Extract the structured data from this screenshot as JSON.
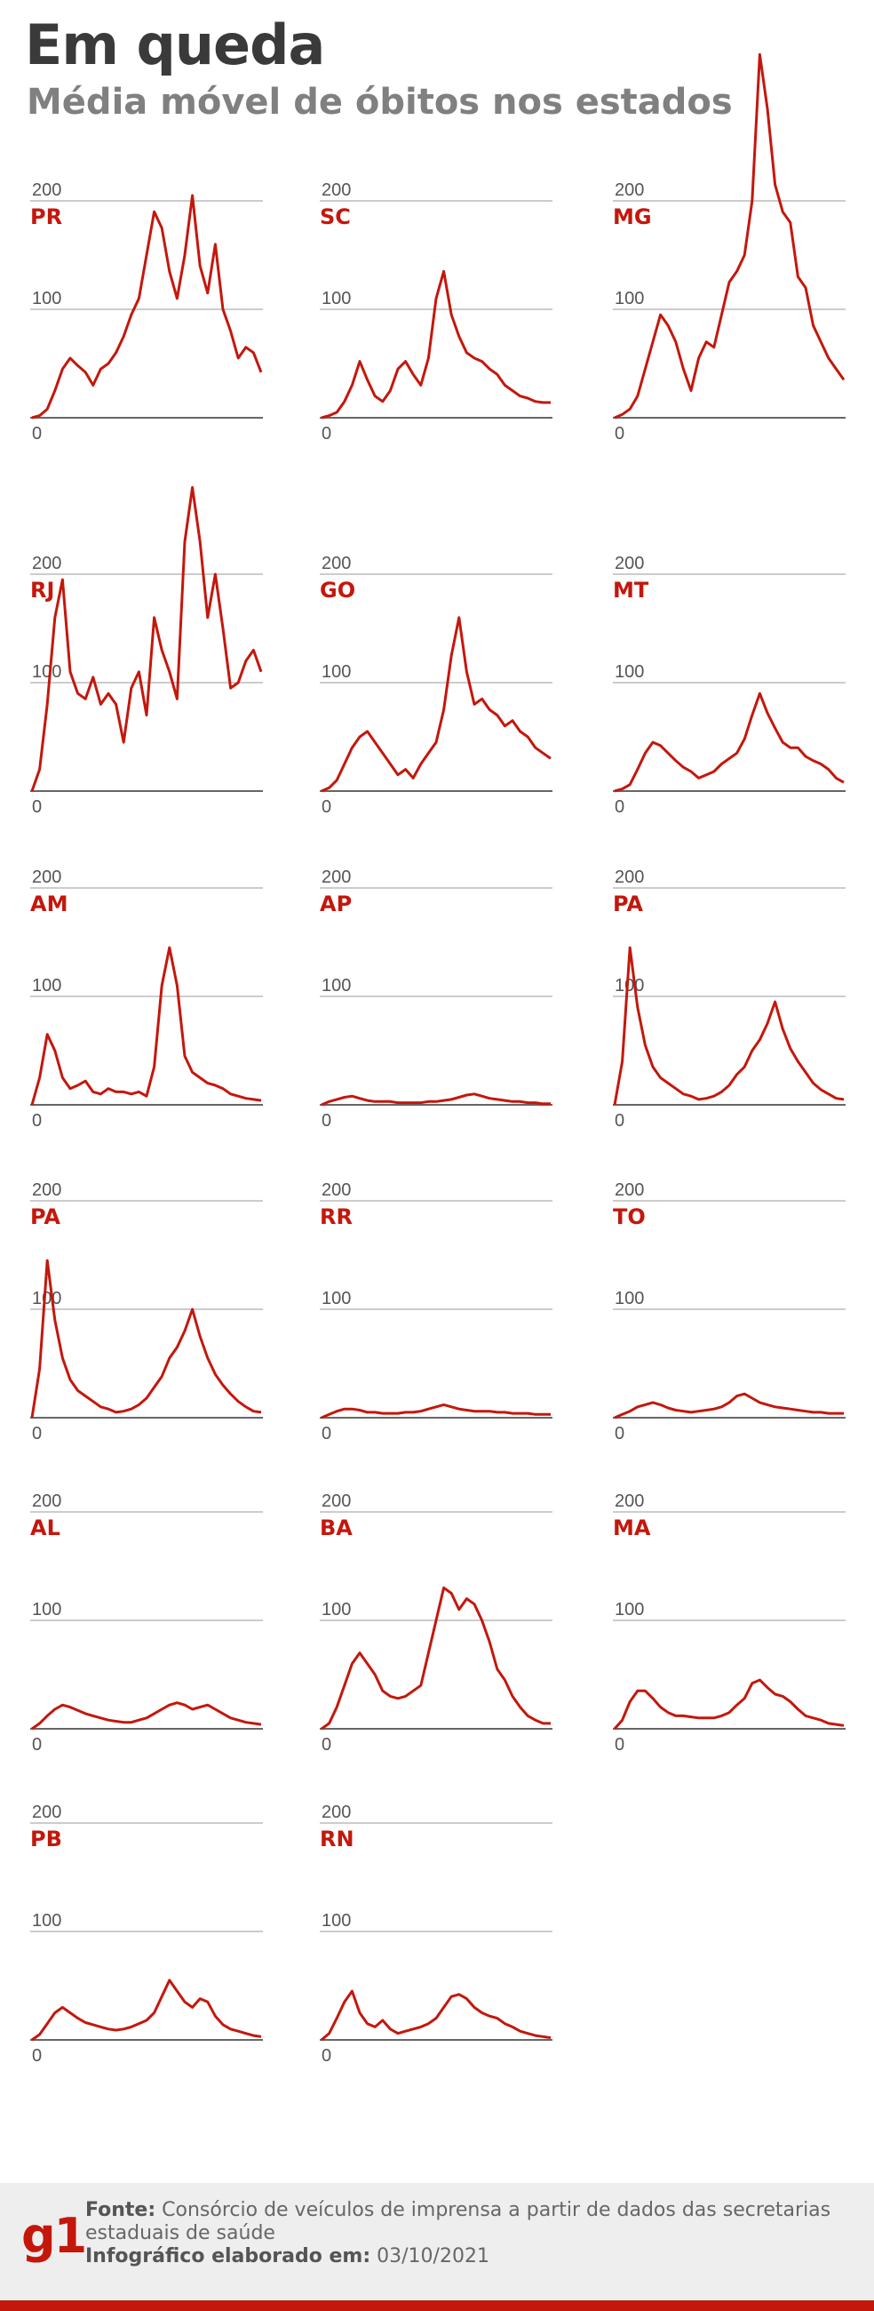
{
  "header": {
    "title": "Em queda",
    "subtitle": "Média móvel de óbitos nos estados"
  },
  "colors": {
    "line": "#c4170c",
    "state_label": "#c4170c",
    "grid": "#bbbbbb",
    "baseline": "#666666",
    "tick": "#555555"
  },
  "chart_data": [
    {
      "type": "line",
      "title": "PR",
      "ylim": [
        0,
        200
      ],
      "yticks": [
        "200",
        "100",
        "0"
      ],
      "x": [
        0,
        10,
        20,
        30,
        40,
        50,
        60,
        70,
        80,
        90,
        100,
        110,
        120,
        130,
        140,
        150,
        160,
        170,
        180,
        190,
        200,
        210,
        220,
        230,
        240,
        250,
        260,
        270,
        280,
        290,
        300
      ],
      "values": [
        0,
        2,
        8,
        25,
        45,
        55,
        48,
        42,
        30,
        45,
        50,
        60,
        75,
        95,
        110,
        150,
        190,
        175,
        135,
        110,
        150,
        205,
        140,
        115,
        160,
        100,
        80,
        55,
        65,
        60,
        42
      ]
    },
    {
      "type": "line",
      "title": "SC",
      "ylim": [
        0,
        200
      ],
      "yticks": [
        "200",
        "100",
        "0"
      ],
      "x": [
        0,
        10,
        20,
        30,
        40,
        50,
        60,
        70,
        80,
        90,
        100,
        110,
        120,
        130,
        140,
        150,
        160,
        170,
        180,
        190,
        200,
        210,
        220,
        230,
        240,
        250,
        260,
        270,
        280,
        290,
        300
      ],
      "values": [
        0,
        2,
        5,
        15,
        30,
        52,
        35,
        20,
        15,
        25,
        45,
        52,
        40,
        30,
        55,
        110,
        135,
        95,
        75,
        60,
        55,
        52,
        45,
        40,
        30,
        25,
        20,
        18,
        15,
        14,
        14
      ]
    },
    {
      "type": "line",
      "title": "MG",
      "ylim": [
        0,
        200
      ],
      "yticks": [
        "200",
        "100",
        "0"
      ],
      "x": [
        0,
        10,
        20,
        30,
        40,
        50,
        60,
        70,
        80,
        90,
        100,
        110,
        120,
        130,
        140,
        150,
        160,
        170,
        180,
        190,
        200,
        210,
        220,
        230,
        240,
        250,
        260,
        270,
        280,
        290,
        300
      ],
      "values": [
        0,
        3,
        8,
        20,
        45,
        70,
        95,
        85,
        70,
        45,
        25,
        55,
        70,
        65,
        95,
        125,
        135,
        150,
        200,
        335,
        285,
        215,
        190,
        180,
        130,
        120,
        85,
        70,
        55,
        45,
        35
      ]
    },
    {
      "type": "line",
      "title": "RJ",
      "ylim": [
        0,
        200
      ],
      "yticks": [
        "200",
        "100",
        "0"
      ],
      "x": [
        0,
        10,
        20,
        30,
        40,
        50,
        60,
        70,
        80,
        90,
        100,
        110,
        120,
        130,
        140,
        150,
        160,
        170,
        180,
        190,
        200,
        210,
        220,
        230,
        240,
        250,
        260,
        270,
        280,
        290,
        300
      ],
      "values": [
        0,
        20,
        80,
        160,
        195,
        110,
        90,
        85,
        105,
        80,
        90,
        80,
        45,
        95,
        110,
        70,
        160,
        130,
        110,
        85,
        230,
        280,
        230,
        160,
        200,
        150,
        95,
        100,
        120,
        130,
        110
      ]
    },
    {
      "type": "line",
      "title": "GO",
      "ylim": [
        0,
        200
      ],
      "yticks": [
        "200",
        "100",
        "0"
      ],
      "x": [
        0,
        10,
        20,
        30,
        40,
        50,
        60,
        70,
        80,
        90,
        100,
        110,
        120,
        130,
        140,
        150,
        160,
        170,
        180,
        190,
        200,
        210,
        220,
        230,
        240,
        250,
        260,
        270,
        280,
        290,
        300
      ],
      "values": [
        0,
        3,
        10,
        25,
        40,
        50,
        55,
        45,
        35,
        25,
        15,
        20,
        12,
        25,
        35,
        45,
        75,
        125,
        160,
        110,
        80,
        85,
        75,
        70,
        60,
        65,
        55,
        50,
        40,
        35,
        30
      ]
    },
    {
      "type": "line",
      "title": "MT",
      "ylim": [
        0,
        200
      ],
      "yticks": [
        "200",
        "100",
        "0"
      ],
      "x": [
        0,
        10,
        20,
        30,
        40,
        50,
        60,
        70,
        80,
        90,
        100,
        110,
        120,
        130,
        140,
        150,
        160,
        170,
        180,
        190,
        200,
        210,
        220,
        230,
        240,
        250,
        260,
        270,
        280,
        290,
        300
      ],
      "values": [
        0,
        2,
        6,
        20,
        35,
        45,
        42,
        35,
        28,
        22,
        18,
        12,
        15,
        18,
        25,
        30,
        35,
        48,
        70,
        90,
        72,
        58,
        45,
        40,
        40,
        32,
        28,
        25,
        20,
        12,
        8
      ]
    },
    {
      "type": "line",
      "title": "AM",
      "ylim": [
        0,
        200
      ],
      "yticks": [
        "200",
        "100",
        "0"
      ],
      "x": [
        0,
        10,
        20,
        30,
        40,
        50,
        60,
        70,
        80,
        90,
        100,
        110,
        120,
        130,
        140,
        150,
        160,
        170,
        180,
        190,
        200,
        210,
        220,
        230,
        240,
        250,
        260,
        270,
        280,
        290,
        300
      ],
      "values": [
        0,
        25,
        65,
        50,
        25,
        15,
        18,
        22,
        12,
        10,
        15,
        12,
        12,
        10,
        12,
        8,
        35,
        110,
        145,
        110,
        45,
        30,
        25,
        20,
        18,
        15,
        10,
        8,
        6,
        5,
        4
      ]
    },
    {
      "type": "line",
      "title": "AP",
      "ylim": [
        0,
        200
      ],
      "yticks": [
        "200",
        "100",
        "0"
      ],
      "x": [
        0,
        10,
        20,
        30,
        40,
        50,
        60,
        70,
        80,
        90,
        100,
        110,
        120,
        130,
        140,
        150,
        160,
        170,
        180,
        190,
        200,
        210,
        220,
        230,
        240,
        250,
        260,
        270,
        280,
        290,
        300
      ],
      "values": [
        0,
        3,
        5,
        7,
        8,
        6,
        4,
        3,
        3,
        3,
        2,
        2,
        2,
        2,
        3,
        3,
        4,
        5,
        7,
        9,
        10,
        8,
        6,
        5,
        4,
        3,
        3,
        2,
        2,
        1,
        1
      ]
    },
    {
      "type": "line",
      "title": "PA",
      "ylim": [
        0,
        200
      ],
      "yticks": [
        "200",
        "100",
        "0"
      ],
      "x": [
        0,
        10,
        20,
        30,
        40,
        50,
        60,
        70,
        80,
        90,
        100,
        110,
        120,
        130,
        140,
        150,
        160,
        170,
        180,
        190,
        200,
        210,
        220,
        230,
        240,
        250,
        260,
        270,
        280,
        290,
        300
      ],
      "values": [
        0,
        40,
        145,
        90,
        55,
        35,
        25,
        20,
        15,
        10,
        8,
        5,
        6,
        8,
        12,
        18,
        28,
        35,
        50,
        60,
        75,
        95,
        70,
        52,
        40,
        30,
        20,
        14,
        10,
        6,
        5
      ]
    },
    {
      "type": "line",
      "title": "PA",
      "ylim": [
        0,
        200
      ],
      "yticks": [
        "200",
        "100",
        "0"
      ],
      "x": [
        0,
        10,
        20,
        30,
        40,
        50,
        60,
        70,
        80,
        90,
        100,
        110,
        120,
        130,
        140,
        150,
        160,
        170,
        180,
        190,
        200,
        210,
        220,
        230,
        240,
        250,
        260,
        270,
        280,
        290,
        300
      ],
      "values": [
        0,
        45,
        145,
        90,
        55,
        35,
        25,
        20,
        15,
        10,
        8,
        5,
        6,
        8,
        12,
        18,
        28,
        38,
        55,
        65,
        80,
        100,
        75,
        55,
        40,
        30,
        22,
        15,
        10,
        6,
        5
      ]
    },
    {
      "type": "line",
      "title": "RR",
      "ylim": [
        0,
        200
      ],
      "yticks": [
        "200",
        "100",
        "0"
      ],
      "x": [
        0,
        10,
        20,
        30,
        40,
        50,
        60,
        70,
        80,
        90,
        100,
        110,
        120,
        130,
        140,
        150,
        160,
        170,
        180,
        190,
        200,
        210,
        220,
        230,
        240,
        250,
        260,
        270,
        280,
        290,
        300
      ],
      "values": [
        0,
        3,
        6,
        8,
        8,
        7,
        5,
        5,
        4,
        4,
        4,
        5,
        5,
        6,
        8,
        10,
        12,
        10,
        8,
        7,
        6,
        6,
        6,
        5,
        5,
        4,
        4,
        4,
        3,
        3,
        3
      ]
    },
    {
      "type": "line",
      "title": "TO",
      "ylim": [
        0,
        200
      ],
      "yticks": [
        "200",
        "100",
        "0"
      ],
      "x": [
        0,
        10,
        20,
        30,
        40,
        50,
        60,
        70,
        80,
        90,
        100,
        110,
        120,
        130,
        140,
        150,
        160,
        170,
        180,
        190,
        200,
        210,
        220,
        230,
        240,
        250,
        260,
        270,
        280,
        290,
        300
      ],
      "values": [
        0,
        3,
        6,
        10,
        12,
        14,
        12,
        9,
        7,
        6,
        5,
        6,
        7,
        8,
        10,
        14,
        20,
        22,
        18,
        14,
        12,
        10,
        9,
        8,
        7,
        6,
        5,
        5,
        4,
        4,
        4
      ]
    },
    {
      "type": "line",
      "title": "AL",
      "ylim": [
        0,
        200
      ],
      "yticks": [
        "200",
        "100",
        "0"
      ],
      "x": [
        0,
        10,
        20,
        30,
        40,
        50,
        60,
        70,
        80,
        90,
        100,
        110,
        120,
        130,
        140,
        150,
        160,
        170,
        180,
        190,
        200,
        210,
        220,
        230,
        240,
        250,
        260,
        270,
        280,
        290,
        300
      ],
      "values": [
        0,
        5,
        12,
        18,
        22,
        20,
        17,
        14,
        12,
        10,
        8,
        7,
        6,
        6,
        8,
        10,
        14,
        18,
        22,
        24,
        22,
        18,
        20,
        22,
        18,
        14,
        10,
        8,
        6,
        5,
        4
      ]
    },
    {
      "type": "line",
      "title": "BA",
      "ylim": [
        0,
        200
      ],
      "yticks": [
        "200",
        "100",
        "0"
      ],
      "x": [
        0,
        10,
        20,
        30,
        40,
        50,
        60,
        70,
        80,
        90,
        100,
        110,
        120,
        130,
        140,
        150,
        160,
        170,
        180,
        190,
        200,
        210,
        220,
        230,
        240,
        250,
        260,
        270,
        280,
        290,
        300
      ],
      "values": [
        0,
        5,
        20,
        40,
        60,
        70,
        60,
        50,
        35,
        30,
        28,
        30,
        35,
        40,
        70,
        100,
        130,
        125,
        110,
        120,
        115,
        100,
        80,
        55,
        45,
        30,
        20,
        12,
        8,
        5,
        5
      ]
    },
    {
      "type": "line",
      "title": "MA",
      "ylim": [
        0,
        200
      ],
      "yticks": [
        "200",
        "100",
        "0"
      ],
      "x": [
        0,
        10,
        20,
        30,
        40,
        50,
        60,
        70,
        80,
        90,
        100,
        110,
        120,
        130,
        140,
        150,
        160,
        170,
        180,
        190,
        200,
        210,
        220,
        230,
        240,
        250,
        260,
        270,
        280,
        290,
        300
      ],
      "values": [
        0,
        8,
        25,
        35,
        35,
        28,
        20,
        15,
        12,
        12,
        11,
        10,
        10,
        10,
        12,
        15,
        22,
        28,
        42,
        45,
        38,
        32,
        30,
        25,
        18,
        12,
        10,
        8,
        5,
        4,
        3
      ]
    },
    {
      "type": "line",
      "title": "PB",
      "ylim": [
        0,
        200
      ],
      "yticks": [
        "200",
        "100",
        "0"
      ],
      "x": [
        0,
        10,
        20,
        30,
        40,
        50,
        60,
        70,
        80,
        90,
        100,
        110,
        120,
        130,
        140,
        150,
        160,
        170,
        180,
        190,
        200,
        210,
        220,
        230,
        240,
        250,
        260,
        270,
        280,
        290,
        300
      ],
      "values": [
        0,
        5,
        15,
        25,
        30,
        25,
        20,
        16,
        14,
        12,
        10,
        9,
        10,
        12,
        15,
        18,
        25,
        40,
        55,
        45,
        35,
        30,
        38,
        35,
        22,
        14,
        10,
        8,
        6,
        4,
        3
      ]
    },
    {
      "type": "line",
      "title": "RN",
      "ylim": [
        0,
        200
      ],
      "yticks": [
        "200",
        "100",
        "0"
      ],
      "x": [
        0,
        10,
        20,
        30,
        40,
        50,
        60,
        70,
        80,
        90,
        100,
        110,
        120,
        130,
        140,
        150,
        160,
        170,
        180,
        190,
        200,
        210,
        220,
        230,
        240,
        250,
        260,
        270,
        280,
        290,
        300
      ],
      "values": [
        0,
        6,
        20,
        35,
        45,
        25,
        15,
        12,
        18,
        10,
        6,
        8,
        10,
        12,
        15,
        20,
        30,
        40,
        42,
        38,
        30,
        25,
        22,
        20,
        15,
        12,
        8,
        6,
        4,
        3,
        2
      ]
    }
  ],
  "footer": {
    "logo": "g1",
    "source_label": "Fonte:",
    "source_text": "Consórcio de veículos de imprensa a partir de dados das secretarias estaduais de saúde",
    "date_label": "Infográfico elaborado em:",
    "date_value": "03/10/2021"
  }
}
